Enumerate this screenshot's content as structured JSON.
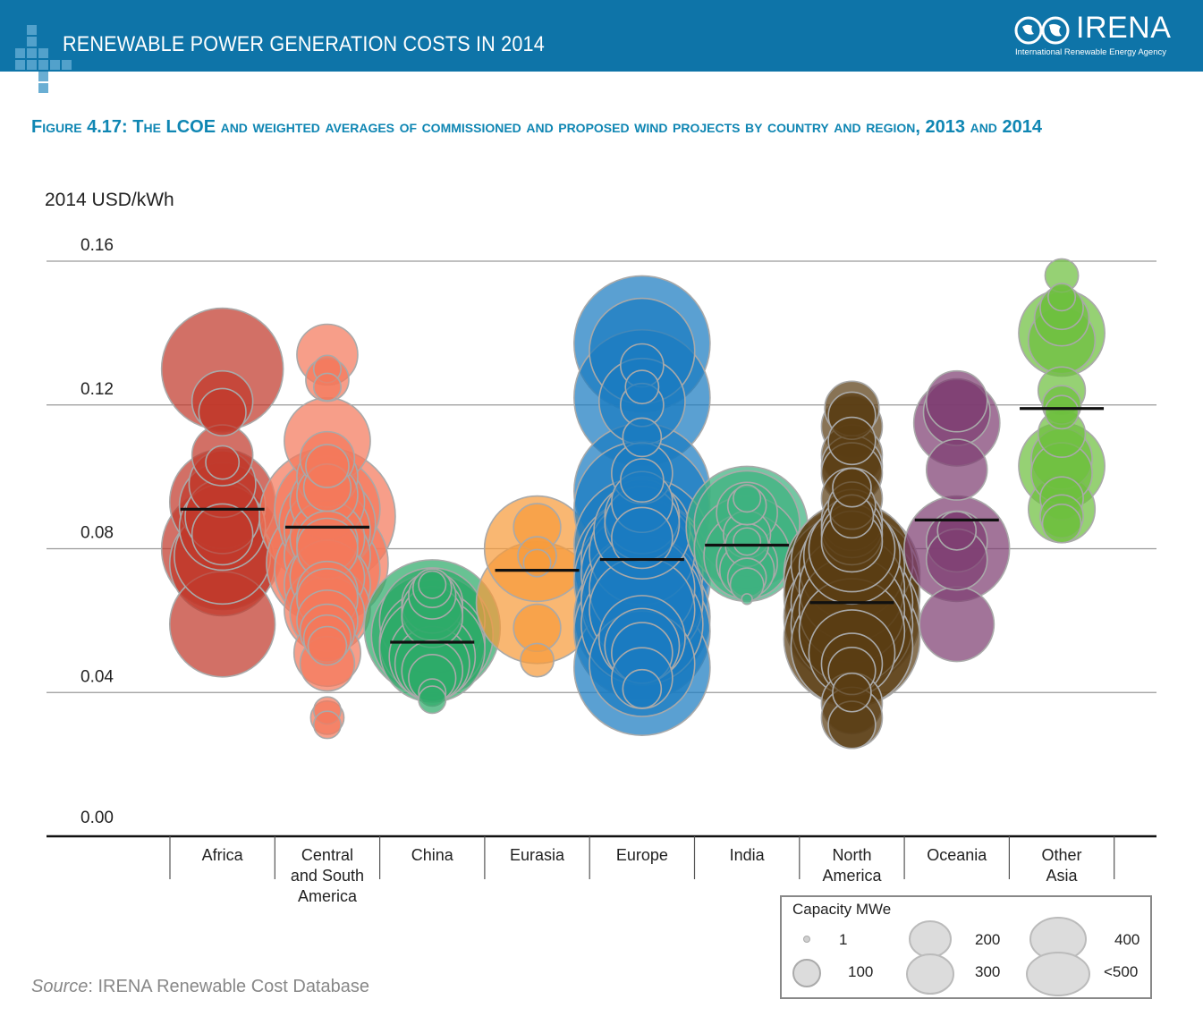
{
  "header": {
    "title": "RENEWABLE POWER GENERATION COSTS IN 2014",
    "logo_text": "IRENA",
    "logo_subtext": "International Renewable Energy Agency"
  },
  "figure_title": "Figure 4.17: The LCOE and weighted averages of commissioned and proposed wind projects  by country and region, 2013 and 2014",
  "unit_label": "2014 USD/kWh",
  "source": {
    "prefix": "Source",
    "text": ": IRENA Renewable Cost Database"
  },
  "legend": {
    "title": "Capacity MWe",
    "items": [
      {
        "label": "1",
        "mw": 1
      },
      {
        "label": "100",
        "mw": 100
      },
      {
        "label": "200",
        "mw": 200
      },
      {
        "label": "300",
        "mw": 300
      },
      {
        "label": "400",
        "mw": 400
      },
      {
        "label": "<500",
        "mw": 500
      }
    ]
  },
  "colors": {
    "banner": "#0e74a8",
    "title": "#0f86b3",
    "Africa": "#c0392b",
    "Central and South America": "#f4795c",
    "China": "#2eaa6a",
    "Eurasia": "#f79b3c",
    "Europe": "#1a7bc0",
    "India": "#3fb27f",
    "North America": "#5a3d14",
    "Oceania": "#7e3f71",
    "Other Asia": "#6dbf3e"
  },
  "chart_data": {
    "type": "scatter",
    "subtype": "bubble",
    "ylabel": "2014 USD/kWh",
    "ylim": [
      0,
      0.16
    ],
    "yticks": [
      "0.00",
      "0.04",
      "0.08",
      "0.12",
      "0.16"
    ],
    "grid": true,
    "categories": [
      "Africa",
      "Central and South America",
      "China",
      "Eurasia",
      "Europe",
      "India",
      "North America",
      "Oceania",
      "Other Asia"
    ],
    "category_labels": [
      [
        "Africa"
      ],
      [
        "Central",
        "and South",
        "America"
      ],
      [
        "China"
      ],
      [
        "Eurasia"
      ],
      [
        "Europe"
      ],
      [
        "India"
      ],
      [
        "North",
        "America"
      ],
      [
        "Oceania"
      ],
      [
        "Other",
        "Asia"
      ]
    ],
    "weighted_average": [
      0.091,
      0.086,
      0.054,
      0.074,
      0.077,
      0.081,
      0.065,
      0.088,
      0.119
    ],
    "series": [
      {
        "category": "Africa",
        "points": [
          [
            0.13,
            400
          ],
          [
            0.121,
            100
          ],
          [
            0.118,
            60
          ],
          [
            0.106,
            100
          ],
          [
            0.104,
            30
          ],
          [
            0.098,
            120
          ],
          [
            0.093,
            300
          ],
          [
            0.092,
            200
          ],
          [
            0.089,
            150
          ],
          [
            0.086,
            200
          ],
          [
            0.084,
            100
          ],
          [
            0.08,
            400
          ],
          [
            0.078,
            250
          ],
          [
            0.076,
            300
          ],
          [
            0.059,
            300
          ]
        ]
      },
      {
        "category": "Central and South America",
        "points": [
          [
            0.134,
            100
          ],
          [
            0.13,
            20
          ],
          [
            0.127,
            50
          ],
          [
            0.125,
            20
          ],
          [
            0.11,
            200
          ],
          [
            0.105,
            80
          ],
          [
            0.103,
            50
          ],
          [
            0.1,
            100
          ],
          [
            0.097,
            60
          ],
          [
            0.095,
            100
          ],
          [
            0.093,
            150
          ],
          [
            0.091,
            300
          ],
          [
            0.089,
            500
          ],
          [
            0.087,
            250
          ],
          [
            0.085,
            200
          ],
          [
            0.083,
            150
          ],
          [
            0.082,
            100
          ],
          [
            0.08,
            100
          ],
          [
            0.078,
            200
          ],
          [
            0.076,
            400
          ],
          [
            0.074,
            300
          ],
          [
            0.072,
            150
          ],
          [
            0.07,
            200
          ],
          [
            0.068,
            100
          ],
          [
            0.066,
            100
          ],
          [
            0.063,
            200
          ],
          [
            0.062,
            150
          ],
          [
            0.06,
            100
          ],
          [
            0.057,
            80
          ],
          [
            0.055,
            60
          ],
          [
            0.053,
            40
          ],
          [
            0.051,
            120
          ],
          [
            0.048,
            80
          ],
          [
            0.035,
            20
          ],
          [
            0.033,
            30
          ],
          [
            0.031,
            20
          ]
        ]
      },
      {
        "category": "China",
        "points": [
          [
            0.07,
            20
          ],
          [
            0.069,
            40
          ],
          [
            0.067,
            60
          ],
          [
            0.065,
            100
          ],
          [
            0.063,
            100
          ],
          [
            0.061,
            100
          ],
          [
            0.06,
            300
          ],
          [
            0.058,
            500
          ],
          [
            0.056,
            400
          ],
          [
            0.054,
            300
          ],
          [
            0.052,
            300
          ],
          [
            0.05,
            200
          ],
          [
            0.048,
            150
          ],
          [
            0.046,
            100
          ],
          [
            0.044,
            60
          ],
          [
            0.04,
            20
          ],
          [
            0.038,
            20
          ]
        ]
      },
      {
        "category": "Eurasia",
        "points": [
          [
            0.086,
            60
          ],
          [
            0.08,
            300
          ],
          [
            0.078,
            40
          ],
          [
            0.076,
            20
          ],
          [
            0.065,
            400
          ],
          [
            0.058,
            60
          ],
          [
            0.049,
            30
          ]
        ]
      },
      {
        "category": "Europe",
        "points": [
          [
            0.137,
            500
          ],
          [
            0.135,
            300
          ],
          [
            0.131,
            50
          ],
          [
            0.125,
            30
          ],
          [
            0.122,
            500
          ],
          [
            0.121,
            200
          ],
          [
            0.12,
            50
          ],
          [
            0.111,
            40
          ],
          [
            0.101,
            100
          ],
          [
            0.099,
            50
          ],
          [
            0.096,
            500
          ],
          [
            0.093,
            100
          ],
          [
            0.091,
            500
          ],
          [
            0.089,
            150
          ],
          [
            0.087,
            150
          ],
          [
            0.085,
            250
          ],
          [
            0.083,
            100
          ],
          [
            0.081,
            500
          ],
          [
            0.079,
            300
          ],
          [
            0.077,
            400
          ],
          [
            0.075,
            500
          ],
          [
            0.073,
            400
          ],
          [
            0.071,
            500
          ],
          [
            0.069,
            300
          ],
          [
            0.067,
            400
          ],
          [
            0.065,
            400
          ],
          [
            0.063,
            300
          ],
          [
            0.061,
            500
          ],
          [
            0.059,
            400
          ],
          [
            0.057,
            500
          ],
          [
            0.055,
            200
          ],
          [
            0.053,
            150
          ],
          [
            0.051,
            100
          ],
          [
            0.048,
            300
          ],
          [
            0.047,
            500
          ],
          [
            0.044,
            100
          ],
          [
            0.041,
            40
          ]
        ]
      },
      {
        "category": "India",
        "points": [
          [
            0.094,
            20
          ],
          [
            0.092,
            40
          ],
          [
            0.09,
            100
          ],
          [
            0.087,
            300
          ],
          [
            0.086,
            400
          ],
          [
            0.084,
            60
          ],
          [
            0.082,
            20
          ],
          [
            0.081,
            50
          ],
          [
            0.08,
            300
          ],
          [
            0.078,
            200
          ],
          [
            0.076,
            100
          ],
          [
            0.074,
            80
          ],
          [
            0.072,
            40
          ],
          [
            0.07,
            30
          ],
          [
            0.066,
            3
          ]
        ]
      },
      {
        "category": "North America",
        "points": [
          [
            0.119,
            80
          ],
          [
            0.117,
            60
          ],
          [
            0.114,
            100
          ],
          [
            0.11,
            60
          ],
          [
            0.106,
            100
          ],
          [
            0.103,
            100
          ],
          [
            0.101,
            100
          ],
          [
            0.097,
            40
          ],
          [
            0.094,
            100
          ],
          [
            0.092,
            60
          ],
          [
            0.089,
            50
          ],
          [
            0.088,
            100
          ],
          [
            0.086,
            100
          ],
          [
            0.084,
            100
          ],
          [
            0.082,
            100
          ],
          [
            0.08,
            200
          ],
          [
            0.078,
            250
          ],
          [
            0.076,
            400
          ],
          [
            0.075,
            300
          ],
          [
            0.073,
            500
          ],
          [
            0.071,
            500
          ],
          [
            0.069,
            300
          ],
          [
            0.067,
            500
          ],
          [
            0.065,
            400
          ],
          [
            0.063,
            300
          ],
          [
            0.061,
            500
          ],
          [
            0.059,
            400
          ],
          [
            0.057,
            300
          ],
          [
            0.055,
            500
          ],
          [
            0.053,
            400
          ],
          [
            0.051,
            200
          ],
          [
            0.048,
            100
          ],
          [
            0.046,
            60
          ],
          [
            0.04,
            40
          ],
          [
            0.037,
            100
          ],
          [
            0.033,
            100
          ],
          [
            0.031,
            60
          ]
        ]
      },
      {
        "category": "Oceania",
        "points": [
          [
            0.121,
            100
          ],
          [
            0.118,
            120
          ],
          [
            0.115,
            200
          ],
          [
            0.102,
            100
          ],
          [
            0.085,
            40
          ],
          [
            0.082,
            100
          ],
          [
            0.08,
            300
          ],
          [
            0.077,
            100
          ],
          [
            0.059,
            150
          ]
        ]
      },
      {
        "category": "Other Asia",
        "points": [
          [
            0.156,
            30
          ],
          [
            0.15,
            20
          ],
          [
            0.147,
            50
          ],
          [
            0.144,
            80
          ],
          [
            0.14,
            200
          ],
          [
            0.138,
            120
          ],
          [
            0.124,
            60
          ],
          [
            0.12,
            40
          ],
          [
            0.118,
            30
          ],
          [
            0.112,
            60
          ],
          [
            0.105,
            100
          ],
          [
            0.103,
            200
          ],
          [
            0.101,
            100
          ],
          [
            0.094,
            50
          ],
          [
            0.091,
            120
          ],
          [
            0.089,
            50
          ],
          [
            0.087,
            40
          ]
        ]
      }
    ]
  }
}
